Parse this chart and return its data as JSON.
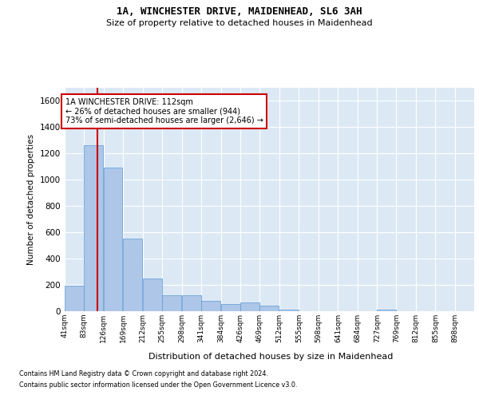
{
  "title": "1A, WINCHESTER DRIVE, MAIDENHEAD, SL6 3AH",
  "subtitle": "Size of property relative to detached houses in Maidenhead",
  "xlabel": "Distribution of detached houses by size in Maidenhead",
  "ylabel": "Number of detached properties",
  "bar_color": "#aec6e8",
  "bar_edge_color": "#5b9bd5",
  "bg_color": "#dce9f5",
  "grid_color": "#ffffff",
  "annotation_box_color": "#cc0000",
  "annotation_text": "1A WINCHESTER DRIVE: 112sqm\n← 26% of detached houses are smaller (944)\n73% of semi-detached houses are larger (2,646) →",
  "property_line_color": "#cc0000",
  "property_size": 112,
  "bin_edges": [
    41,
    83,
    126,
    169,
    212,
    255,
    298,
    341,
    384,
    426,
    469,
    512,
    555,
    598,
    641,
    684,
    727,
    769,
    812,
    855,
    898
  ],
  "bin_labels": [
    "41sqm",
    "83sqm",
    "126sqm",
    "169sqm",
    "212sqm",
    "255sqm",
    "298sqm",
    "341sqm",
    "384sqm",
    "426sqm",
    "469sqm",
    "512sqm",
    "555sqm",
    "598sqm",
    "641sqm",
    "684sqm",
    "727sqm",
    "769sqm",
    "812sqm",
    "855sqm",
    "898sqm"
  ],
  "bar_heights": [
    195,
    1265,
    1095,
    550,
    250,
    120,
    120,
    80,
    55,
    65,
    40,
    15,
    0,
    0,
    0,
    0,
    15,
    0,
    0,
    0,
    0
  ],
  "ylim": [
    0,
    1700
  ],
  "yticks": [
    0,
    200,
    400,
    600,
    800,
    1000,
    1200,
    1400,
    1600
  ],
  "footnote1": "Contains HM Land Registry data © Crown copyright and database right 2024.",
  "footnote2": "Contains public sector information licensed under the Open Government Licence v3.0."
}
